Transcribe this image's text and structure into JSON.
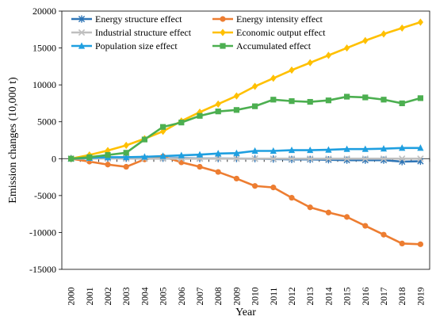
{
  "chart_data": {
    "type": "line",
    "title": "",
    "xlabel": "Year",
    "ylabel": "Emission changes (10,000 t)",
    "ylim": [
      -15000,
      20000
    ],
    "yticks": [
      -15000,
      -10000,
      -5000,
      0,
      5000,
      10000,
      15000,
      20000
    ],
    "ytick_labels": [
      "-15000",
      "-10000",
      "-5000",
      "0",
      "5000",
      "10000",
      "15000",
      "20000"
    ],
    "categories": [
      "2000",
      "2001",
      "2002",
      "2003",
      "2004",
      "2005",
      "2006",
      "2007",
      "2008",
      "2009",
      "2010",
      "2011",
      "2012",
      "2013",
      "2014",
      "2015",
      "2016",
      "2017",
      "2018",
      "2019"
    ],
    "grid": false,
    "legend_position": "top-left",
    "series": [
      {
        "name": "Energy structure effect",
        "color": "#2E75B6",
        "marker": "star",
        "values": [
          0,
          50,
          80,
          60,
          40,
          50,
          60,
          30,
          20,
          10,
          0,
          -50,
          -100,
          -100,
          -150,
          -200,
          -200,
          -200,
          -400,
          -350
        ]
      },
      {
        "name": "Energy intensity effect",
        "color": "#ED7D31",
        "marker": "circle",
        "values": [
          0,
          -400,
          -800,
          -1100,
          -100,
          300,
          -500,
          -1100,
          -1800,
          -2700,
          -3700,
          -3900,
          -5300,
          -6600,
          -7300,
          -7900,
          -9100,
          -10300,
          -11500,
          -11600
        ]
      },
      {
        "name": "Industrial structure effect",
        "color": "#BFBFBF",
        "marker": "x",
        "values": [
          0,
          10,
          20,
          10,
          0,
          0,
          0,
          0,
          0,
          0,
          0,
          0,
          0,
          0,
          0,
          0,
          0,
          0,
          0,
          0
        ]
      },
      {
        "name": "Economic output effect",
        "color": "#FFC000",
        "marker": "diamond",
        "values": [
          0,
          500,
          1100,
          1800,
          2700,
          3700,
          5100,
          6300,
          7400,
          8500,
          9800,
          10900,
          12000,
          13000,
          14000,
          15000,
          16000,
          16900,
          17700,
          18500
        ]
      },
      {
        "name": "Population size effect",
        "color": "#1F9FE0",
        "marker": "triangle",
        "values": [
          0,
          100,
          200,
          200,
          250,
          350,
          450,
          550,
          700,
          750,
          1050,
          1050,
          1150,
          1150,
          1200,
          1300,
          1300,
          1350,
          1450,
          1450
        ]
      },
      {
        "name": "Accumulated effect",
        "color": "#4CAF50",
        "marker": "square",
        "values": [
          0,
          200,
          500,
          800,
          2600,
          4300,
          4900,
          5800,
          6400,
          6600,
          7100,
          8000,
          7800,
          7700,
          7900,
          8400,
          8300,
          8000,
          7500,
          8200
        ]
      }
    ]
  }
}
